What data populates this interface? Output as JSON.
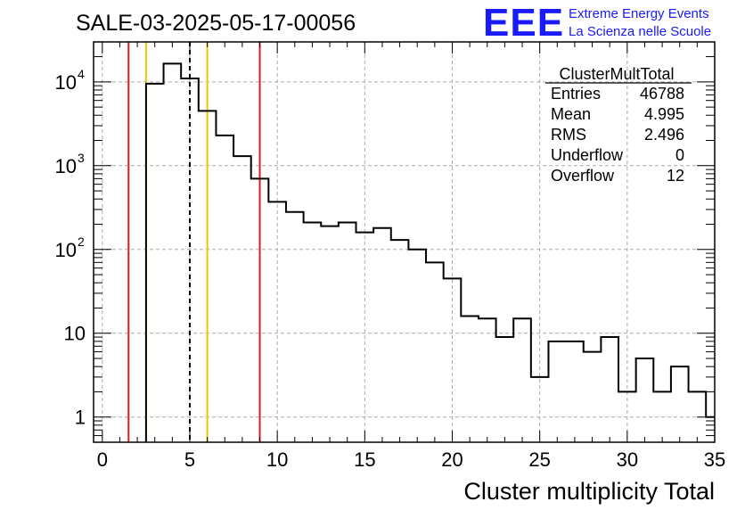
{
  "chart_data": {
    "type": "histogram",
    "title": "SALE-03-2025-05-17-00056",
    "xlabel": "Cluster multiplicity Total",
    "ylabel": "",
    "xlim": [
      -0.5,
      35
    ],
    "ylim": [
      0.5,
      30000
    ],
    "yscale": "log",
    "grid": true,
    "bin_edges": [
      0.5,
      1.5,
      2.5,
      3.5,
      4.5,
      5.5,
      6.5,
      7.5,
      8.5,
      9.5,
      10.5,
      11.5,
      12.5,
      13.5,
      14.5,
      15.5,
      16.5,
      17.5,
      18.5,
      19.5,
      20.5,
      21.5,
      22.5,
      23.5,
      24.5,
      25.5,
      26.5,
      27.5,
      28.5,
      29.5,
      30.5,
      31.5,
      32.5,
      33.5,
      34.5,
      35
    ],
    "values": [
      0,
      0,
      9500,
      16500,
      11000,
      4500,
      2300,
      1300,
      700,
      370,
      280,
      210,
      190,
      210,
      160,
      180,
      130,
      100,
      70,
      45,
      16,
      15,
      9,
      15,
      3,
      8,
      8,
      6,
      9,
      2,
      5,
      2,
      4,
      2,
      1
    ],
    "x_ticks": [
      "0",
      "5",
      "10",
      "15",
      "20",
      "25",
      "30",
      "35"
    ],
    "x_tick_values": [
      0,
      5,
      10,
      15,
      20,
      25,
      30,
      35
    ],
    "y_ticks": [
      {
        "value": 1,
        "label": "1",
        "exp": ""
      },
      {
        "value": 10,
        "label": "10",
        "exp": ""
      },
      {
        "value": 100,
        "label": "10",
        "exp": "2"
      },
      {
        "value": 1000,
        "label": "10",
        "exp": "3"
      },
      {
        "value": 10000,
        "label": "10",
        "exp": "4"
      }
    ],
    "vertical_lines": [
      {
        "x": 1.5,
        "color": "#e41a1c",
        "style": "solid"
      },
      {
        "x": 2.5,
        "color": "#f2c200",
        "style": "solid"
      },
      {
        "x": 5.0,
        "color": "#000000",
        "style": "dashed"
      },
      {
        "x": 6.0,
        "color": "#f2c200",
        "style": "solid"
      },
      {
        "x": 9.0,
        "color": "#e41a1c",
        "style": "solid"
      }
    ],
    "stats": {
      "name": "ClusterMultTotal",
      "rows": [
        {
          "label": "Entries",
          "value": "46788"
        },
        {
          "label": "Mean",
          "value": "4.995"
        },
        {
          "label": "RMS",
          "value": "2.496"
        },
        {
          "label": "Underflow",
          "value": "0"
        },
        {
          "label": "Overflow",
          "value": "12"
        }
      ]
    }
  },
  "logo": {
    "text": "EEE",
    "line1": "Extreme Energy Events",
    "line2": "La Scienza nelle Scuole",
    "color": "#1a1aff"
  },
  "colors": {
    "histogram": "#000000",
    "grid": "#aaaaaa"
  }
}
